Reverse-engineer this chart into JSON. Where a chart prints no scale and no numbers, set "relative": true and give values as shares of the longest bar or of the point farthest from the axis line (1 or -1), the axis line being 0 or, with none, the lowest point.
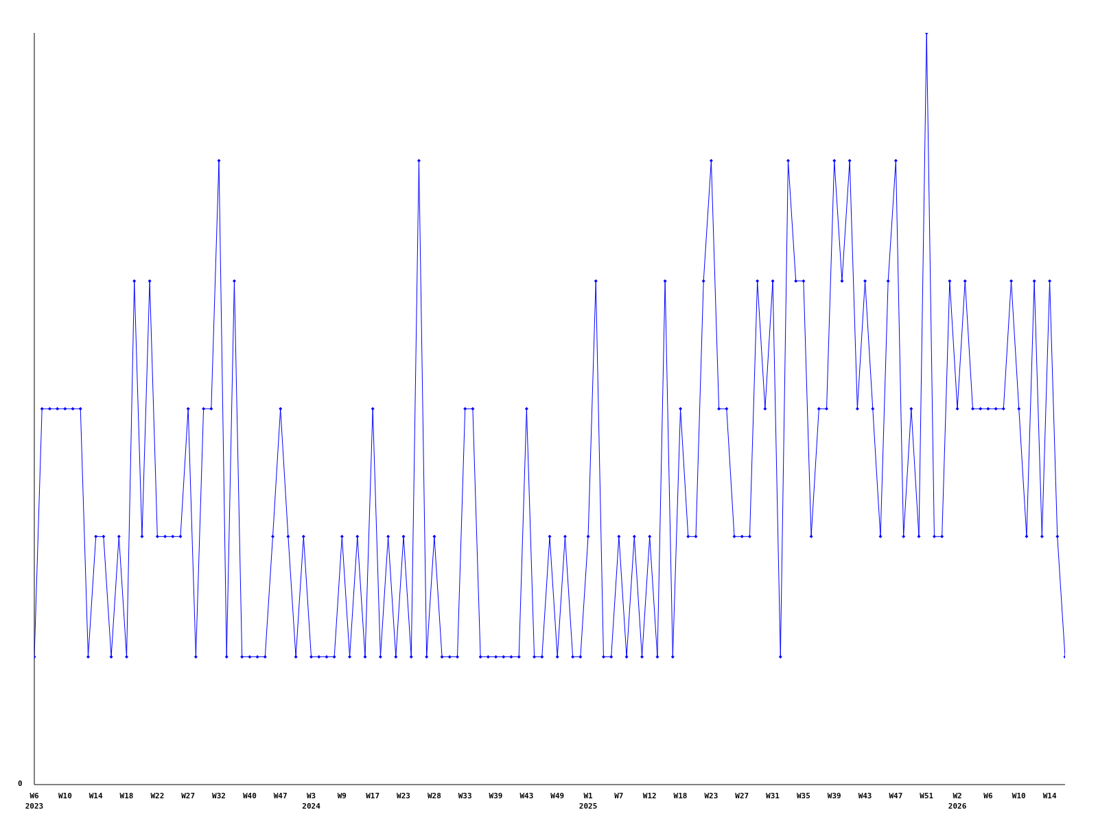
{
  "chart_data": {
    "type": "line",
    "relative": true,
    "annotations": [
      "0"
    ],
    "marker": "diamond",
    "line_style": "solid",
    "grid": false,
    "legend": false,
    "categories": [
      "W6\n2023",
      null,
      null,
      null,
      "W10",
      null,
      null,
      null,
      "W14",
      null,
      null,
      null,
      "W18",
      null,
      null,
      null,
      "W22",
      null,
      null,
      null,
      "W27",
      null,
      null,
      null,
      "W32",
      null,
      null,
      null,
      "W40",
      null,
      null,
      null,
      "W47",
      null,
      null,
      null,
      "W3\n2024",
      null,
      null,
      null,
      "W9",
      null,
      null,
      null,
      "W17",
      null,
      null,
      null,
      "W23",
      null,
      null,
      null,
      "W28",
      null,
      null,
      null,
      "W33",
      null,
      null,
      null,
      "W39",
      null,
      null,
      null,
      "W43",
      null,
      null,
      null,
      "W49",
      null,
      null,
      null,
      "W1\n2025",
      null,
      null,
      null,
      "W7",
      null,
      null,
      null,
      "W12",
      null,
      null,
      null,
      "W18",
      null,
      null,
      null,
      "W23",
      null,
      null,
      null,
      "W27",
      null,
      null,
      null,
      "W31",
      null,
      null,
      null,
      "W35",
      null,
      null,
      null,
      "W39",
      null,
      null,
      null,
      "W43",
      null,
      null,
      null,
      "W47",
      null,
      null,
      null,
      "W51",
      null,
      null,
      null,
      "W2\n2026",
      null,
      null,
      null,
      "W6",
      null,
      null,
      null,
      "W10",
      null,
      null,
      null,
      "W14",
      null,
      null
    ],
    "series": [
      {
        "color": "#0000ff",
        "values": [
          0.17,
          0.5,
          0.5,
          0.5,
          0.5,
          0.5,
          0.5,
          0.17,
          0.33,
          0.33,
          0.17,
          0.33,
          0.17,
          0.67,
          0.33,
          0.67,
          0.33,
          0.33,
          0.33,
          0.33,
          0.5,
          0.17,
          0.5,
          0.5,
          0.83,
          0.17,
          0.67,
          0.17,
          0.17,
          0.17,
          0.17,
          0.33,
          0.5,
          0.33,
          0.17,
          0.33,
          0.17,
          0.17,
          0.17,
          0.17,
          0.33,
          0.17,
          0.33,
          0.17,
          0.5,
          0.17,
          0.33,
          0.17,
          0.33,
          0.17,
          0.83,
          0.17,
          0.33,
          0.17,
          0.17,
          0.17,
          0.5,
          0.5,
          0.17,
          0.17,
          0.17,
          0.17,
          0.17,
          0.17,
          0.5,
          0.17,
          0.17,
          0.33,
          0.17,
          0.33,
          0.17,
          0.17,
          0.33,
          0.67,
          0.17,
          0.17,
          0.33,
          0.17,
          0.33,
          0.17,
          0.33,
          0.17,
          0.67,
          0.17,
          0.5,
          0.33,
          0.33,
          0.67,
          0.83,
          0.5,
          0.5,
          0.33,
          0.33,
          0.33,
          0.67,
          0.5,
          0.67,
          0.17,
          0.83,
          0.67,
          0.67,
          0.33,
          0.5,
          0.5,
          0.83,
          0.67,
          0.83,
          0.5,
          0.67,
          0.5,
          0.33,
          0.67,
          0.83,
          0.33,
          0.5,
          0.33,
          1,
          0.33,
          0.33,
          0.67,
          0.5,
          0.67,
          0.5,
          0.5,
          0.5,
          0.5,
          0.5,
          0.67,
          0.5,
          0.33,
          0.67,
          0.33,
          0.67,
          0.33,
          0.17
        ]
      }
    ]
  }
}
